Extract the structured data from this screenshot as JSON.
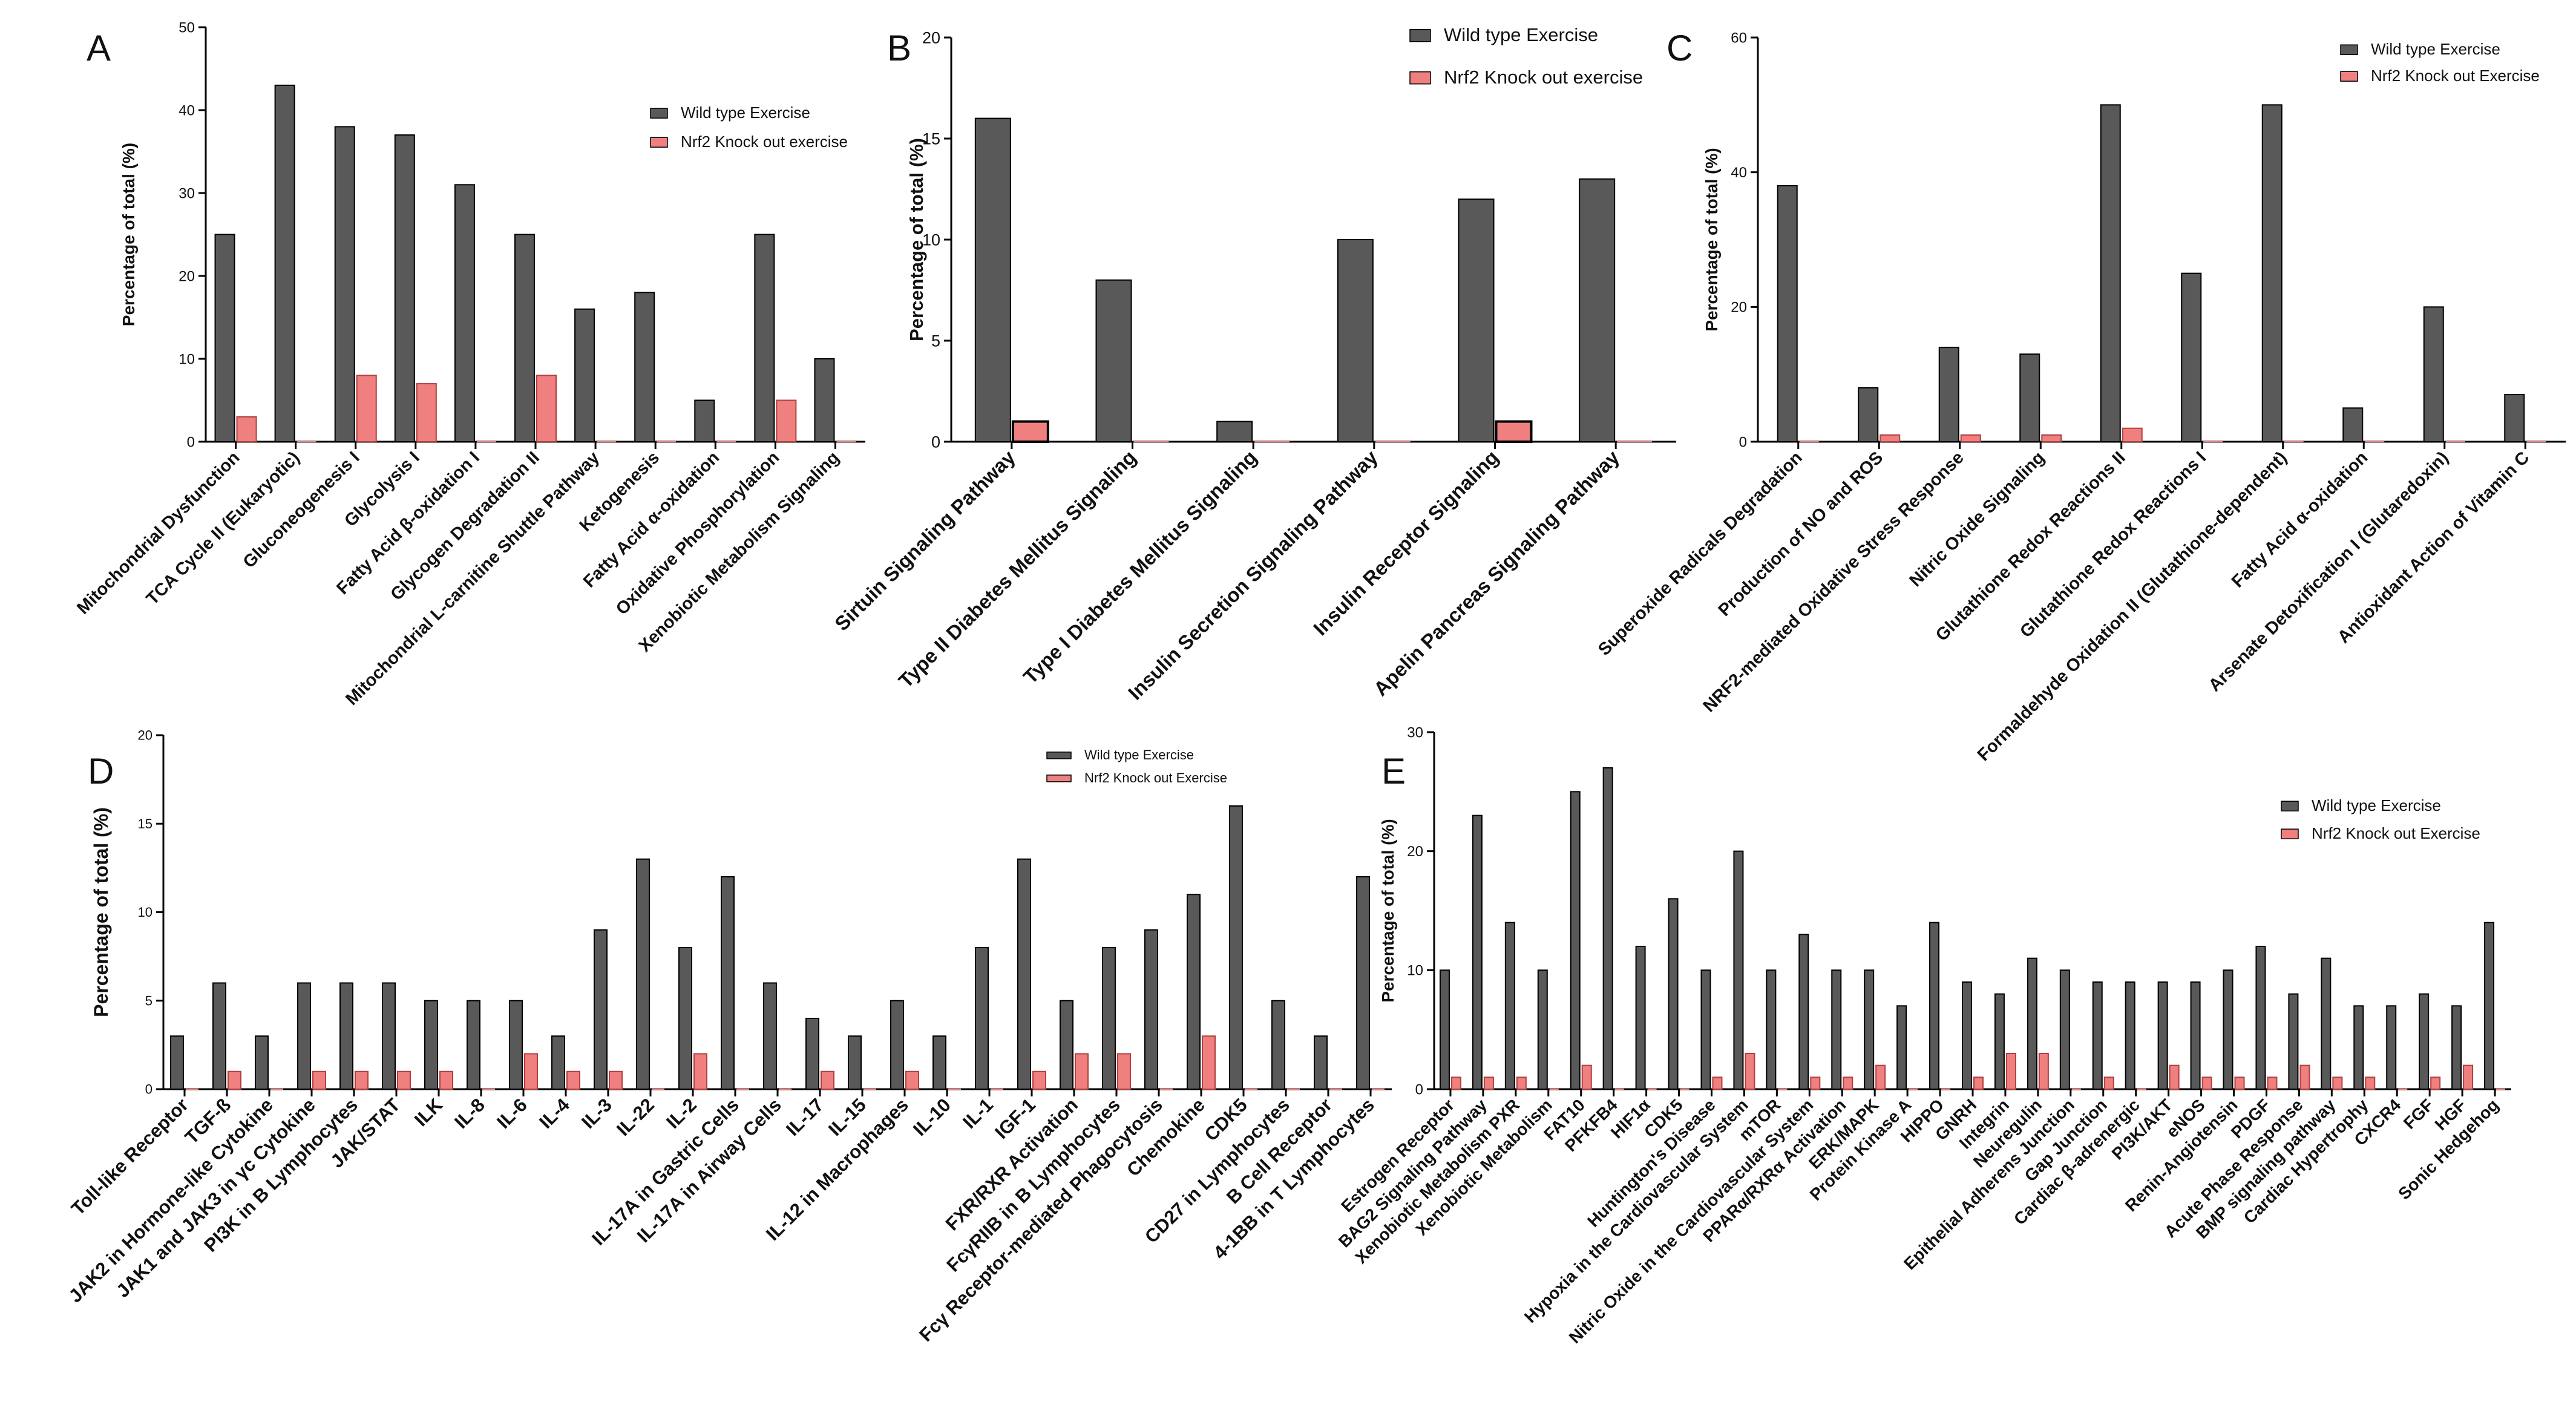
{
  "colors": {
    "wild": "#595959",
    "knockout": "#f08080",
    "axis": "#000000"
  },
  "chart_data": [
    {
      "label": "A",
      "type": "bar",
      "ylabel": "Percentage of total (%)",
      "ylim": [
        0,
        50
      ],
      "yticks": [
        0,
        10,
        20,
        30,
        40,
        50
      ],
      "categories": [
        "Mitochondrial Dysfunction",
        "TCA Cycle II (Eukaryotic)",
        "Gluconeogenesis I",
        "Glycolysis I",
        "Fatty Acid β-oxidation I",
        "Glycogen Degradation II",
        "Mitochondrial L-carnitine Shuttle Pathway",
        "Ketogenesis",
        "Fatty Acid α-oxidation",
        "Oxidative Phosphorylation",
        "Xenobiotic Metabolism Signaling"
      ],
      "series": [
        {
          "name": "Wild type Exercise",
          "values": [
            25,
            43,
            38,
            37,
            31,
            25,
            16,
            18,
            5,
            25,
            10
          ]
        },
        {
          "name": "Nrf2 Knock out exercise",
          "values": [
            3,
            0,
            8,
            7,
            0,
            8,
            0,
            0,
            0,
            5,
            0
          ]
        }
      ],
      "legend": "top-right"
    },
    {
      "label": "B",
      "type": "bar",
      "ylabel": "Percentage of total (%)",
      "ylim": [
        0,
        20
      ],
      "yticks": [
        0,
        5,
        10,
        15,
        20
      ],
      "categories": [
        "Sirtuin Signaling Pathway",
        "Type II Diabetes Mellitus Signaling",
        "Type I Diabetes Mellitus Signaling",
        "Insulin Secretion Signaling Pathway",
        "Insulin Receptor Signaling",
        "Apelin Pancreas Signaling Pathway"
      ],
      "series": [
        {
          "name": "Wild type Exercise",
          "values": [
            16,
            8,
            1,
            10,
            12,
            13
          ]
        },
        {
          "name": "Nrf2 Knock out exercise",
          "values": [
            1,
            0,
            0,
            0,
            1,
            0
          ]
        }
      ],
      "legend": "top-right"
    },
    {
      "label": "C",
      "type": "bar",
      "ylabel": "Percentage of total (%)",
      "ylim": [
        0,
        60
      ],
      "yticks": [
        0,
        20,
        40,
        60
      ],
      "categories": [
        "Superoxide Radicals Degradation",
        "Production of NO and ROS",
        "NRF2-mediated Oxidative Stress Response",
        "Nitric Oxide Signaling",
        "Glutathione Redox Reactions II",
        "Glutathione Redox Reactions I",
        "Formaldehyde Oxidation II (Glutathione-dependent)",
        "Fatty Acid α-oxidation",
        "Arsenate Detoxification I (Glutaredoxin)",
        "Antioxidant Action of Vitamin C"
      ],
      "series": [
        {
          "name": "Wild type Exercise",
          "values": [
            38,
            8,
            14,
            13,
            50,
            25,
            50,
            5,
            20,
            7
          ]
        },
        {
          "name": "Nrf2 Knock out Exercise",
          "values": [
            0,
            1,
            1,
            1,
            2,
            0,
            0,
            0,
            0,
            0
          ]
        }
      ],
      "legend": "top-right"
    },
    {
      "label": "D",
      "type": "bar",
      "ylabel": "Percentage of total (%)",
      "ylim": [
        0,
        20
      ],
      "yticks": [
        0,
        5,
        10,
        15,
        20
      ],
      "categories": [
        "Toll-like Receptor",
        "TGF-ß",
        "JAK2 in Hormone-like Cytokine",
        "JAK1 and JAK3 in γc Cytokine",
        "PI3K in B Lymphocytes",
        "JAK/STAT",
        "ILK",
        "IL-8",
        "IL-6",
        "IL-4",
        "IL-3",
        "IL-22",
        "IL-2",
        "IL-17A in Gastric Cells",
        "IL-17A in Airway Cells",
        "IL-17",
        "IL-15",
        "IL-12 in Macrophages",
        "IL-10",
        "IL-1",
        "IGF-1",
        "FXR/RXR Activation",
        "FcγRIIB in B Lymphocytes",
        "Fcγ Receptor-mediated Phagocytosis",
        "Chemokine",
        "CDK5",
        "CD27 in Lymphocytes",
        "B Cell Receptor",
        "4-1BB in T Lymphocytes"
      ],
      "series": [
        {
          "name": "Wild type Exercise",
          "values": [
            3,
            6,
            3,
            6,
            6,
            6,
            5,
            5,
            5,
            3,
            9,
            13,
            8,
            12,
            6,
            4,
            3,
            5,
            3,
            8,
            13,
            5,
            8,
            9,
            11,
            16,
            5,
            3,
            12
          ]
        },
        {
          "name": "Nrf2 Knock out Exercise",
          "values": [
            0,
            1,
            0,
            1,
            1,
            1,
            1,
            0,
            2,
            1,
            1,
            0,
            2,
            0,
            0,
            1,
            0,
            1,
            0,
            0,
            1,
            2,
            2,
            0,
            3,
            0,
            0,
            0,
            0
          ]
        }
      ],
      "legend": "top-right"
    },
    {
      "label": "E",
      "type": "bar",
      "ylabel": "Percentage of total (%)",
      "ylim": [
        0,
        30
      ],
      "yticks": [
        0,
        10,
        20,
        30
      ],
      "categories": [
        "Estrogen Receptor",
        "BAG2 Signaling Pathway",
        "Xenobiotic Metabolism PXR",
        "Xenobiotic Metabolism",
        "FAT10",
        "PFKFB4",
        "HIF1α",
        "CDK5",
        "Huntington's Disease",
        "Hypoxia in the Cardiovascular System",
        "mTOR",
        "Nitric Oxide in the Cardiovascular System",
        "PPARα/RXRα Activation",
        "ERK/MAPK",
        "Protein Kinase A",
        "HIPPO",
        "GNRH",
        "Integrin",
        "Neuregulin",
        "Epithelial Adherens Junction",
        "Gap Junction",
        "Cardiac β-adrenergic",
        "PI3K/AKT",
        "eNOS",
        "Renin-Angiotensin",
        "PDGF",
        "Acute Phase Response",
        "BMP signaling pathway",
        "Cardiac Hypertrophy",
        "CXCR4",
        "FGF",
        "HGF",
        "Sonic Hedgehog"
      ],
      "series": [
        {
          "name": "Wild type Exercise",
          "values": [
            10,
            23,
            14,
            10,
            25,
            27,
            12,
            16,
            10,
            20,
            10,
            13,
            10,
            10,
            7,
            14,
            9,
            8,
            11,
            10,
            9,
            9,
            9,
            9,
            10,
            12,
            8,
            11,
            7,
            7,
            8,
            7,
            14
          ]
        },
        {
          "name": "Nrf2 Knock out Exercise",
          "values": [
            1,
            1,
            1,
            0,
            2,
            0,
            0,
            0,
            1,
            3,
            0,
            1,
            1,
            2,
            0,
            0,
            1,
            3,
            3,
            0,
            1,
            0,
            2,
            1,
            1,
            1,
            2,
            1,
            1,
            0,
            1,
            2,
            0
          ]
        }
      ],
      "legend": "top-right"
    }
  ]
}
